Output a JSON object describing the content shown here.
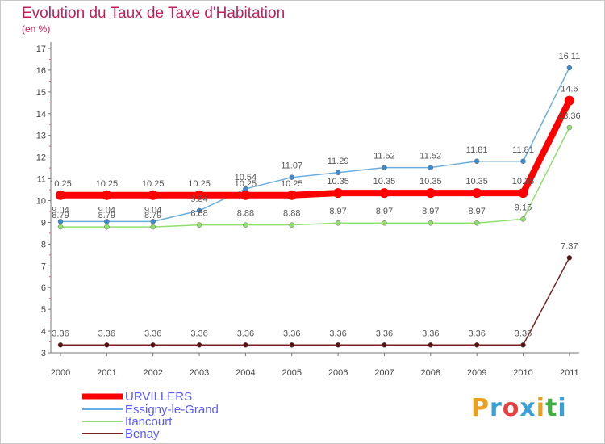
{
  "title": "Evolution du Taux de Taxe d'Habitation",
  "unit": "(en %)",
  "logo": {
    "text": "Proxiti",
    "colors": [
      "#e8a020",
      "#3aa0d8",
      "#e84040",
      "#3aa0d8",
      "#e8a020",
      "#40b040",
      "#3aa0d8"
    ]
  },
  "chart_data": {
    "type": "line",
    "x": [
      "2000",
      "2001",
      "2002",
      "2003",
      "2004",
      "2005",
      "2006",
      "2007",
      "2008",
      "2009",
      "2010",
      "2011"
    ],
    "ylim": [
      3,
      17
    ],
    "yticks": [
      3,
      4,
      5,
      6,
      7,
      8,
      9,
      10,
      11,
      12,
      13,
      14,
      15,
      16,
      17
    ],
    "grid": false,
    "legend_position": "bottom-left",
    "series": [
      {
        "name": "URVILLERS",
        "color": "#ff0000",
        "highlight": true,
        "values": [
          10.25,
          10.25,
          10.25,
          10.25,
          10.25,
          10.25,
          10.35,
          10.35,
          10.35,
          10.35,
          10.35,
          14.6
        ],
        "labels": [
          "10.25",
          "10.25",
          "10.25",
          "10.25",
          "10.25",
          "10.25",
          "10.35",
          "10.35",
          "10.35",
          "10.35",
          "10.35",
          "14.6"
        ]
      },
      {
        "name": "Essigny-le-Grand",
        "color": "#6aaee0",
        "point_color": "#3c8ad0",
        "values": [
          9.04,
          9.04,
          9.04,
          9.54,
          10.54,
          11.07,
          11.29,
          11.52,
          11.52,
          11.81,
          11.81,
          16.11
        ],
        "labels": [
          "9.04",
          "9.04",
          "9.04",
          "9.54",
          "10.54",
          "11.07",
          "11.29",
          "11.52",
          "11.52",
          "11.81",
          "11.81",
          "16.11"
        ]
      },
      {
        "name": "Itancourt",
        "color": "#90e070",
        "point_color": "#90e070",
        "values": [
          8.79,
          8.79,
          8.79,
          8.88,
          8.88,
          8.88,
          8.97,
          8.97,
          8.97,
          8.97,
          9.15,
          13.36
        ],
        "labels": [
          "8.79",
          "8.79",
          "8.79",
          "8.88",
          "8.88",
          "8.88",
          "8.97",
          "8.97",
          "8.97",
          "8.97",
          "9.15",
          "13.36"
        ]
      },
      {
        "name": "Benay",
        "color": "#7a2020",
        "point_color": "#5a1010",
        "values": [
          3.36,
          3.36,
          3.36,
          3.36,
          3.36,
          3.36,
          3.36,
          3.36,
          3.36,
          3.36,
          3.36,
          7.37
        ],
        "labels": [
          "3.36",
          "3.36",
          "3.36",
          "3.36",
          "3.36",
          "3.36",
          "3.36",
          "3.36",
          "3.36",
          "3.36",
          "3.36",
          "7.37"
        ]
      }
    ]
  }
}
